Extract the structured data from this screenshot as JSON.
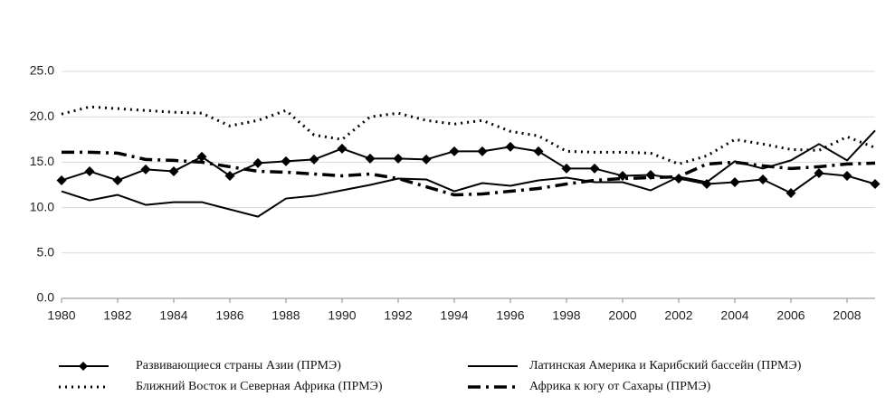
{
  "chart_data": {
    "type": "line",
    "x": [
      1980,
      1981,
      1982,
      1983,
      1984,
      1985,
      1986,
      1987,
      1988,
      1989,
      1990,
      1991,
      1992,
      1993,
      1994,
      1995,
      1996,
      1997,
      1998,
      1999,
      2000,
      2001,
      2002,
      2003,
      2004,
      2005,
      2006,
      2007,
      2008,
      2009
    ],
    "xlim": [
      1980,
      2009
    ],
    "xticks": [
      1980,
      1982,
      1984,
      1986,
      1988,
      1990,
      1992,
      1994,
      1996,
      1998,
      2000,
      2002,
      2004,
      2006,
      2008
    ],
    "ylim": [
      0,
      25
    ],
    "yticks": [
      {
        "value": 0,
        "label": "0.0"
      },
      {
        "value": 5,
        "label": "5.0"
      },
      {
        "value": 10,
        "label": "10.0"
      },
      {
        "value": 15,
        "label": "15.0"
      },
      {
        "value": 20,
        "label": "20.0"
      },
      {
        "value": 25,
        "label": "25.0"
      }
    ],
    "grid": true,
    "legend": "bottom",
    "series": [
      {
        "name": "Развивающиеся страны Азии (ПРМЭ)",
        "color": "#000000",
        "style": "solid",
        "marker": "diamond",
        "values": [
          13.0,
          14.0,
          13.0,
          14.2,
          14.0,
          15.6,
          13.5,
          14.9,
          15.1,
          15.3,
          16.5,
          15.4,
          15.4,
          15.3,
          16.2,
          16.2,
          16.7,
          16.2,
          14.3,
          14.3,
          13.5,
          13.6,
          13.2,
          12.6,
          12.8,
          13.1,
          11.6,
          13.8,
          13.5,
          12.6
        ]
      },
      {
        "name": "Латинская Америка и Карибский бассейн (ПРМЭ)",
        "color": "#000000",
        "style": "solid",
        "values": [
          11.8,
          10.8,
          11.4,
          10.3,
          10.6,
          10.6,
          9.8,
          9.0,
          11.0,
          11.3,
          11.9,
          12.5,
          13.2,
          13.1,
          11.8,
          12.7,
          12.4,
          13.0,
          13.3,
          12.8,
          12.8,
          11.9,
          13.4,
          12.8,
          15.1,
          14.3,
          15.2,
          17.0,
          15.2,
          18.5
        ]
      },
      {
        "name": "Ближний Восток и Северная Африка (ПРМЭ)",
        "color": "#000000",
        "style": "dotted",
        "values": [
          20.3,
          21.1,
          20.9,
          20.7,
          20.5,
          20.4,
          19.0,
          19.6,
          20.7,
          18.0,
          17.5,
          20.0,
          20.4,
          19.6,
          19.2,
          19.6,
          18.4,
          17.9,
          16.2,
          16.1,
          16.1,
          16.0,
          14.8,
          15.7,
          17.5,
          17.0,
          16.4,
          16.3,
          17.8,
          16.6
        ]
      },
      {
        "name": "Африка к югу от Сахары (ПРМЭ)",
        "color": "#000000",
        "style": "dashdot",
        "values": [
          16.1,
          16.1,
          16.0,
          15.3,
          15.2,
          15.0,
          14.5,
          14.0,
          13.9,
          13.7,
          13.5,
          13.7,
          13.2,
          12.3,
          11.4,
          11.5,
          11.8,
          12.1,
          12.6,
          13.0,
          13.2,
          13.3,
          13.4,
          14.8,
          15.0,
          14.6,
          14.3,
          14.5,
          14.8,
          14.9
        ]
      }
    ]
  }
}
